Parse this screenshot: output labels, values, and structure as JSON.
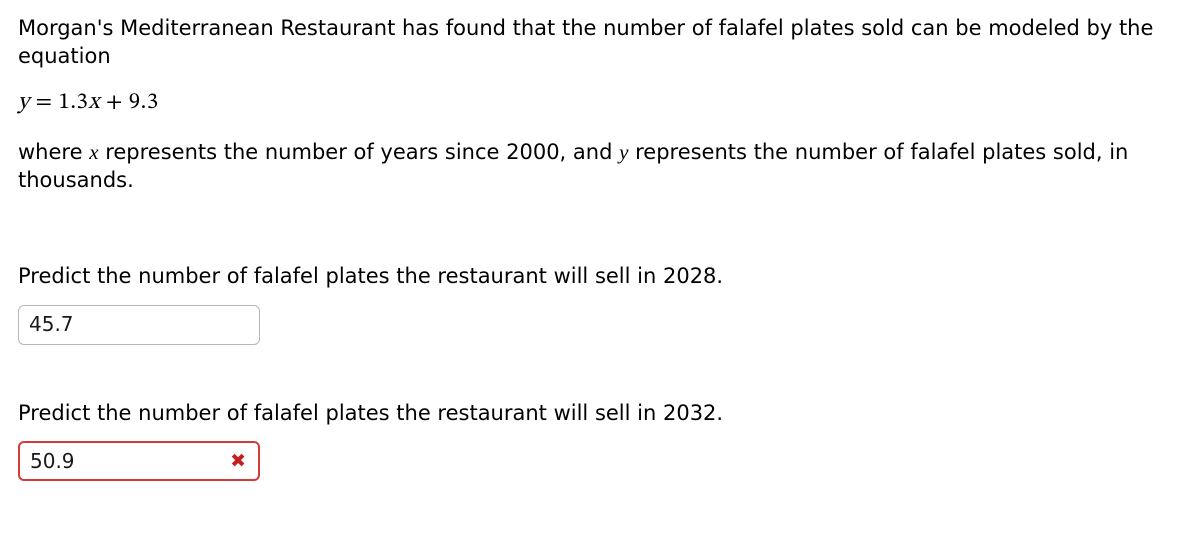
{
  "intro_line1": "Morgan's Mediterranean Restaurant has found that the number of falafel plates sold can be modeled by the",
  "intro_line2": "equation",
  "equation": {
    "lhs": "y",
    "eq_sign": "=",
    "slope": "1.3",
    "var": "x",
    "plus": "+",
    "intercept": "9.3"
  },
  "explain_pre": "where ",
  "explain_x": "x",
  "explain_mid1": "  represents the number of years since 2000, and ",
  "explain_y": "y",
  "explain_mid2": "  represents the number of falafel plates sold, in",
  "explain_line2": "thousands.",
  "question1": "Predict the number of falafel plates the restaurant will sell in 2028.",
  "answer1": {
    "value": "45.7",
    "status": "neutral"
  },
  "question2": "Predict the number of falafel plates the restaurant will sell in 2032.",
  "answer2": {
    "value": "50.9",
    "status": "incorrect"
  },
  "colors": {
    "incorrect_border": "#d63b3b",
    "incorrect_x": "#c22121",
    "input_border": "#b7b7b7",
    "text": "#000000",
    "bg": "#ffffff"
  }
}
